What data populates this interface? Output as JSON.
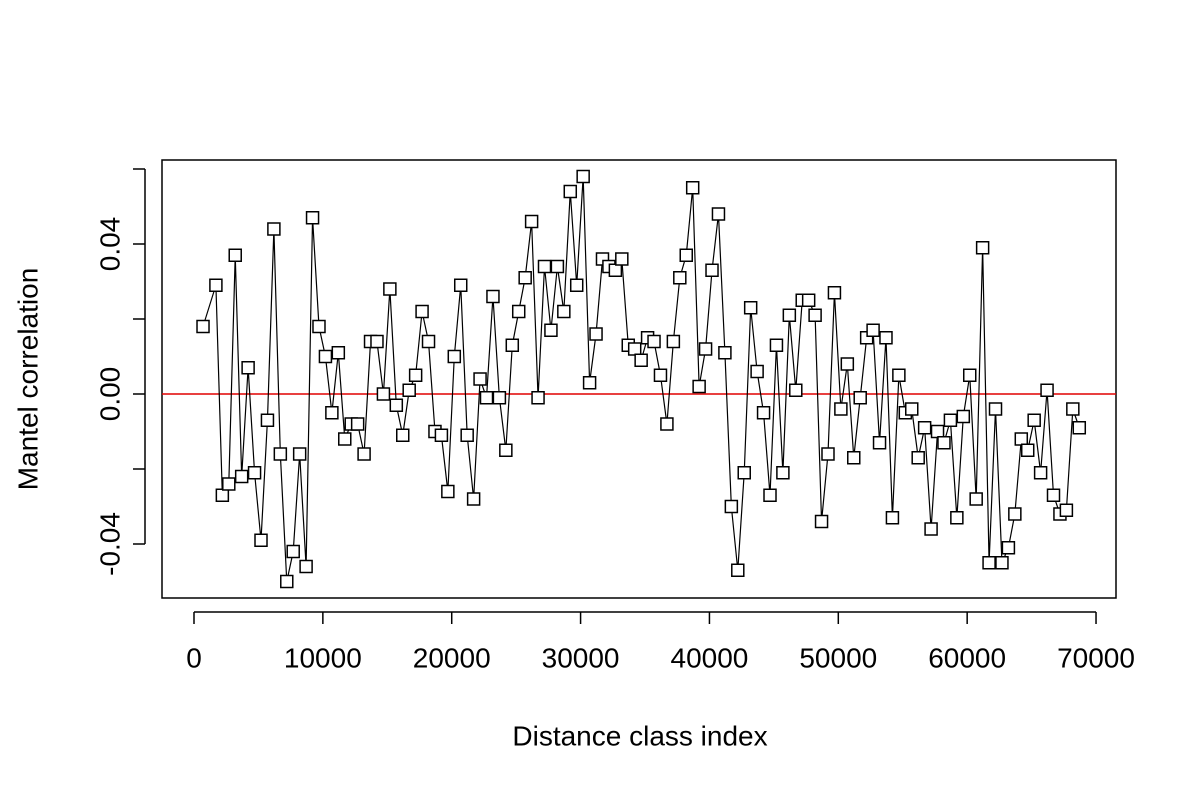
{
  "chart_data": {
    "type": "line",
    "x_label": "Distance class index",
    "y_label": "Mantel correlation",
    "x": [
      700,
      1700,
      2200,
      2700,
      3200,
      3700,
      4200,
      4700,
      5200,
      5700,
      6200,
      6700,
      7200,
      7700,
      8200,
      8700,
      9200,
      9700,
      10200,
      10700,
      11200,
      11700,
      12200,
      12700,
      13200,
      13700,
      14200,
      14700,
      15200,
      15700,
      16200,
      16700,
      17200,
      17700,
      18200,
      18700,
      19200,
      19700,
      20200,
      20700,
      21200,
      21700,
      22200,
      22700,
      23200,
      23700,
      24200,
      24700,
      25200,
      25700,
      26200,
      26700,
      27200,
      27700,
      28200,
      28700,
      29200,
      29700,
      30200,
      30700,
      31200,
      31700,
      32200,
      32700,
      33200,
      33700,
      34200,
      34700,
      35200,
      35700,
      36200,
      36700,
      37200,
      37700,
      38200,
      38700,
      39200,
      39700,
      40200,
      40700,
      41200,
      41700,
      42200,
      42700,
      43200,
      43700,
      44200,
      44700,
      45200,
      45700,
      46200,
      46700,
      47200,
      47700,
      48200,
      48700,
      49200,
      49700,
      50200,
      50700,
      51200,
      51700,
      52200,
      52700,
      53200,
      53700,
      54200,
      54700,
      55200,
      55700,
      56200,
      56700,
      57200,
      57700,
      58200,
      58700,
      59200,
      59700,
      60200,
      60700,
      61200,
      61700,
      62200,
      62700,
      63200,
      63700,
      64200,
      64700,
      65200,
      65700,
      66200,
      66700,
      67200,
      67700,
      68200,
      68700
    ],
    "series": [
      {
        "color": "#000000",
        "marker": "square",
        "values": [
          0.018,
          0.029,
          -0.027,
          -0.024,
          0.037,
          -0.022,
          0.007,
          -0.021,
          -0.039,
          -0.007,
          0.044,
          -0.016,
          -0.05,
          -0.042,
          -0.016,
          -0.046,
          0.047,
          0.018,
          0.01,
          -0.005,
          0.011,
          -0.012,
          -0.008,
          -0.008,
          -0.016,
          0.014,
          0.014,
          0.0,
          0.028,
          -0.003,
          -0.011,
          0.001,
          0.005,
          0.022,
          0.014,
          -0.01,
          -0.011,
          -0.026,
          0.01,
          0.029,
          -0.011,
          -0.028,
          0.004,
          -0.001,
          0.026,
          -0.001,
          -0.015,
          0.013,
          0.022,
          0.031,
          0.046,
          -0.001,
          0.034,
          0.017,
          0.034,
          0.022,
          0.054,
          0.029,
          0.058,
          0.003,
          0.016,
          0.036,
          0.034,
          0.033,
          0.036,
          0.013,
          0.012,
          0.009,
          0.015,
          0.014,
          0.005,
          -0.008,
          0.014,
          0.031,
          0.037,
          0.055,
          0.002,
          0.012,
          0.033,
          0.048,
          0.011,
          -0.03,
          -0.047,
          -0.021,
          0.023,
          0.006,
          -0.005,
          -0.027,
          0.013,
          -0.021,
          0.021,
          0.001,
          0.025,
          0.025,
          0.021,
          -0.034,
          -0.016,
          0.027,
          -0.004,
          0.008,
          -0.017,
          -0.001,
          0.015,
          0.017,
          -0.013,
          0.015,
          -0.033,
          0.005,
          -0.005,
          -0.004,
          -0.017,
          -0.009,
          -0.036,
          -0.01,
          -0.013,
          -0.007,
          -0.033,
          -0.006,
          0.005,
          -0.028,
          0.039,
          -0.045,
          -0.004,
          -0.045,
          -0.041,
          -0.032,
          -0.012,
          -0.015,
          -0.007,
          -0.021,
          0.001,
          -0.027,
          -0.032,
          -0.031,
          -0.004,
          -0.009
        ]
      }
    ],
    "xlim": [
      -2483,
      71550
    ],
    "ylim": [
      -0.0544,
      0.0624
    ],
    "xticks": [
      0,
      10000,
      20000,
      30000,
      40000,
      50000,
      60000,
      70000
    ],
    "yticks": [
      {
        "value": -0.04,
        "label": "-0.04"
      },
      {
        "value": 0,
        "label": "0.00"
      },
      {
        "value": 0.04,
        "label": "0.04"
      }
    ],
    "yticks_unlabeled": [
      -0.02,
      0.02,
      0.06
    ],
    "hline": 0,
    "hline_color": "#e00000",
    "grid": false
  }
}
